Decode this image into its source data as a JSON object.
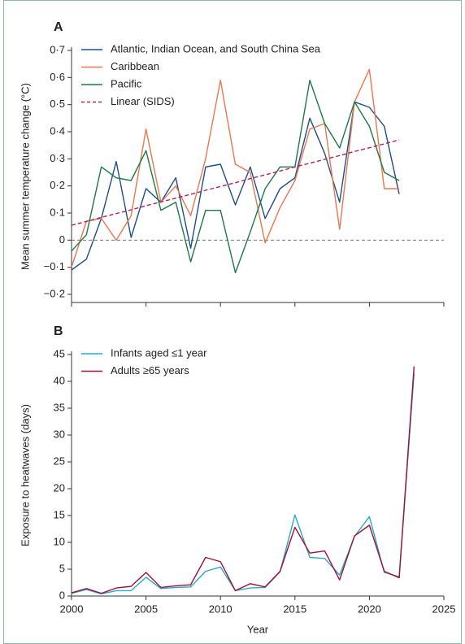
{
  "chart_data": [
    {
      "type": "line",
      "label": "A",
      "ylabel": "Mean summer temperature change (°C)",
      "x": [
        2000,
        2001,
        2002,
        2003,
        2004,
        2005,
        2006,
        2007,
        2008,
        2009,
        2010,
        2011,
        2012,
        2013,
        2014,
        2015,
        2016,
        2017,
        2018,
        2019,
        2020,
        2021,
        2022
      ],
      "series": [
        {
          "name": "Atlantic, Indian Ocean, and South China Sea",
          "color": "#1f4e8c",
          "values": [
            -0.11,
            -0.07,
            0.08,
            0.29,
            0.01,
            0.19,
            0.14,
            0.23,
            -0.03,
            0.27,
            0.28,
            0.13,
            0.27,
            0.08,
            0.19,
            0.23,
            0.45,
            0.32,
            0.14,
            0.51,
            0.49,
            0.42,
            0.17
          ]
        },
        {
          "name": "Caribbean",
          "color": "#e8784f",
          "values": [
            -0.1,
            0.07,
            0.08,
            0.0,
            0.09,
            0.41,
            0.14,
            0.2,
            0.09,
            0.3,
            0.59,
            0.28,
            0.25,
            -0.01,
            0.12,
            0.22,
            0.41,
            0.43,
            0.04,
            0.51,
            0.63,
            0.19,
            0.19
          ]
        },
        {
          "name": "Pacific",
          "color": "#1e7a45",
          "values": [
            -0.04,
            0.02,
            0.27,
            0.23,
            0.22,
            0.33,
            0.11,
            0.14,
            -0.08,
            0.11,
            0.11,
            -0.12,
            0.03,
            0.19,
            0.27,
            0.27,
            0.59,
            0.43,
            0.34,
            0.51,
            0.42,
            0.25,
            0.22
          ]
        },
        {
          "name": "Linear (SIDS)",
          "color": "#b5205a",
          "dashed": true,
          "values": [
            0.055,
            0.069,
            0.084,
            0.098,
            0.112,
            0.127,
            0.141,
            0.155,
            0.169,
            0.184,
            0.198,
            0.212,
            0.227,
            0.241,
            0.255,
            0.27,
            0.284,
            0.298,
            0.312,
            0.327,
            0.341,
            0.355,
            0.37
          ]
        }
      ],
      "xlim": [
        2000,
        2025
      ],
      "xticks": [
        2000,
        2005,
        2010,
        2015,
        2020,
        2025
      ],
      "xtick_labels": false,
      "ylim": [
        -0.2,
        0.7
      ],
      "yticks": [
        {
          "value": -0.2,
          "label": "−0·2"
        },
        {
          "value": -0.1,
          "label": "−0·1"
        },
        0,
        {
          "value": 0.1,
          "label": "0·1"
        },
        {
          "value": 0.2,
          "label": "0·2"
        },
        {
          "value": 0.3,
          "label": "0·3"
        },
        {
          "value": 0.4,
          "label": "0·4"
        },
        {
          "value": 0.5,
          "label": "0·5"
        },
        {
          "value": 0.6,
          "label": "0·6"
        },
        {
          "value": 0.7,
          "label": "0·7"
        }
      ],
      "zero_line": true,
      "legend": "top-left"
    },
    {
      "type": "line",
      "label": "B",
      "ylabel": "Exposure to heatwaves (days)",
      "xlabel": "Year",
      "x": [
        2000,
        2001,
        2002,
        2003,
        2004,
        2005,
        2006,
        2007,
        2008,
        2009,
        2010,
        2011,
        2012,
        2013,
        2014,
        2015,
        2016,
        2017,
        2018,
        2019,
        2020,
        2021,
        2022,
        2023
      ],
      "series": [
        {
          "name": "Infants aged ≤1 year",
          "color": "#29a8c8",
          "values": [
            0.5,
            1.2,
            0.4,
            1.0,
            1.0,
            3.5,
            1.4,
            1.6,
            1.7,
            4.6,
            5.4,
            1.0,
            1.5,
            1.6,
            4.5,
            15.1,
            7.2,
            7.0,
            3.9,
            11.1,
            14.8,
            4.4,
            3.6,
            41.5
          ]
        },
        {
          "name": "Adults ≥65 years",
          "color": "#a0103c",
          "values": [
            0.6,
            1.4,
            0.5,
            1.5,
            1.8,
            4.4,
            1.6,
            1.9,
            2.1,
            7.2,
            6.4,
            1.0,
            2.3,
            1.7,
            4.6,
            12.8,
            8.0,
            8.4,
            3.0,
            11.2,
            13.2,
            4.6,
            3.4,
            42.8
          ]
        }
      ],
      "xlim": [
        2000,
        2025
      ],
      "xticks": [
        2000,
        2005,
        2010,
        2015,
        2020,
        2025
      ],
      "xtick_labels": true,
      "ylim": [
        0,
        45
      ],
      "yticks": [
        0,
        5,
        10,
        15,
        20,
        25,
        30,
        35,
        40,
        45
      ],
      "zero_line": false,
      "legend": "top-left"
    }
  ]
}
